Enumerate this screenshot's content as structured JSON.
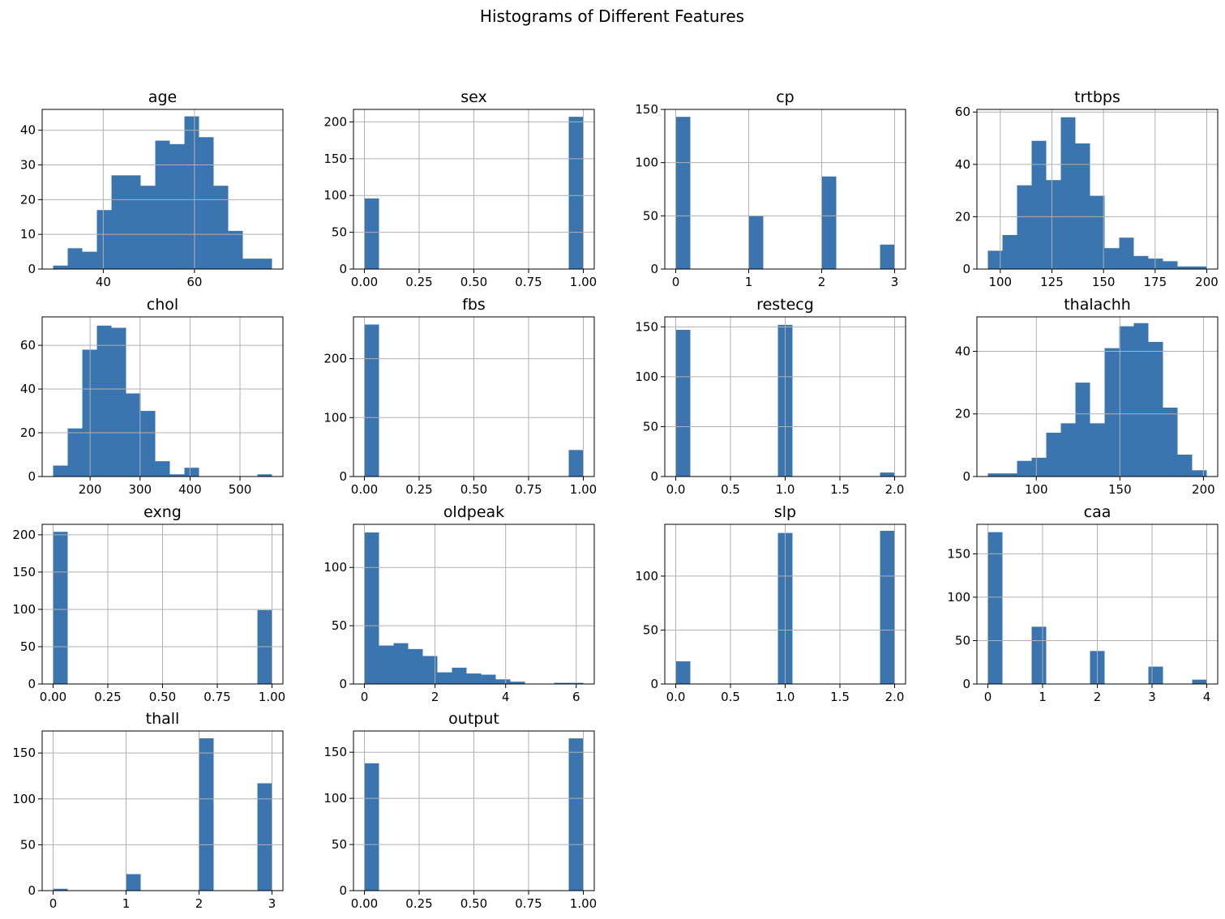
{
  "figure": {
    "title": "Histograms of Different Features",
    "bar_color": "#3b75af",
    "grid_color": "#b0b0b0"
  },
  "chart_data": [
    {
      "type": "bar",
      "title": "age",
      "xlabel": "",
      "ylabel": "",
      "grid": true,
      "bin_range": [
        29,
        77
      ],
      "xlim": [
        26.6,
        79.4
      ],
      "ylim": [
        0,
        46
      ],
      "xticks": [
        40,
        60
      ],
      "yticks": [
        0,
        10,
        20,
        30,
        40
      ],
      "tick_labels_x": [
        "40",
        "60"
      ],
      "tick_labels_y": [
        "0",
        "10",
        "20",
        "30",
        "40"
      ],
      "values": [
        1,
        6,
        5,
        17,
        27,
        27,
        24,
        37,
        36,
        44,
        38,
        24,
        11,
        3,
        3
      ]
    },
    {
      "type": "bar",
      "title": "sex",
      "xlabel": "",
      "ylabel": "",
      "grid": true,
      "bin_range": [
        0,
        1
      ],
      "xlim": [
        -0.05,
        1.05
      ],
      "ylim": [
        0,
        217
      ],
      "xticks": [
        0,
        0.25,
        0.5,
        0.75,
        1
      ],
      "yticks": [
        0,
        50,
        100,
        150,
        200
      ],
      "tick_labels_x": [
        "0.00",
        "0.25",
        "0.50",
        "0.75",
        "1.00"
      ],
      "tick_labels_y": [
        "0",
        "50",
        "100",
        "150",
        "200"
      ],
      "values": [
        96,
        0,
        0,
        0,
        0,
        0,
        0,
        0,
        0,
        0,
        0,
        0,
        0,
        0,
        207
      ]
    },
    {
      "type": "bar",
      "title": "cp",
      "xlabel": "",
      "ylabel": "",
      "grid": true,
      "bin_range": [
        0,
        3
      ],
      "xlim": [
        -0.15,
        3.15
      ],
      "ylim": [
        0,
        150
      ],
      "xticks": [
        0,
        1,
        2,
        3
      ],
      "yticks": [
        0,
        50,
        100,
        150
      ],
      "tick_labels_x": [
        "0",
        "1",
        "2",
        "3"
      ],
      "tick_labels_y": [
        "0",
        "50",
        "100",
        "150"
      ],
      "values": [
        143,
        0,
        0,
        0,
        0,
        50,
        0,
        0,
        0,
        0,
        87,
        0,
        0,
        0,
        23
      ]
    },
    {
      "type": "bar",
      "title": "trtbps",
      "xlabel": "",
      "ylabel": "",
      "grid": true,
      "bin_range": [
        94,
        200
      ],
      "xlim": [
        88.7,
        205.3
      ],
      "ylim": [
        0,
        61
      ],
      "xticks": [
        100,
        125,
        150,
        175,
        200
      ],
      "yticks": [
        0,
        20,
        40,
        60
      ],
      "tick_labels_x": [
        "100",
        "125",
        "150",
        "175",
        "200"
      ],
      "tick_labels_y": [
        "0",
        "20",
        "40",
        "60"
      ],
      "values": [
        7,
        13,
        32,
        49,
        34,
        58,
        48,
        28,
        8,
        12,
        5,
        4,
        3,
        1,
        1
      ]
    },
    {
      "type": "bar",
      "title": "chol",
      "xlabel": "",
      "ylabel": "",
      "grid": true,
      "bin_range": [
        126,
        564
      ],
      "xlim": [
        104.1,
        585.9
      ],
      "ylim": [
        0,
        73
      ],
      "xticks": [
        200,
        300,
        400,
        500
      ],
      "yticks": [
        0,
        20,
        40,
        60
      ],
      "tick_labels_x": [
        "200",
        "300",
        "400",
        "500"
      ],
      "tick_labels_y": [
        "0",
        "20",
        "40",
        "60"
      ],
      "values": [
        5,
        22,
        58,
        69,
        68,
        38,
        30,
        7,
        1,
        4,
        0,
        0,
        0,
        0,
        1
      ]
    },
    {
      "type": "bar",
      "title": "fbs",
      "xlabel": "",
      "ylabel": "",
      "grid": true,
      "bin_range": [
        0,
        1
      ],
      "xlim": [
        -0.05,
        1.05
      ],
      "ylim": [
        0,
        271
      ],
      "xticks": [
        0,
        0.25,
        0.5,
        0.75,
        1
      ],
      "yticks": [
        0,
        100,
        200
      ],
      "tick_labels_x": [
        "0.00",
        "0.25",
        "0.50",
        "0.75",
        "1.00"
      ],
      "tick_labels_y": [
        "0",
        "100",
        "200"
      ],
      "values": [
        258,
        0,
        0,
        0,
        0,
        0,
        0,
        0,
        0,
        0,
        0,
        0,
        0,
        0,
        45
      ]
    },
    {
      "type": "bar",
      "title": "restecg",
      "xlabel": "",
      "ylabel": "",
      "grid": true,
      "bin_range": [
        0,
        2
      ],
      "xlim": [
        -0.1,
        2.1
      ],
      "ylim": [
        0,
        160
      ],
      "xticks": [
        0,
        0.5,
        1,
        1.5,
        2
      ],
      "yticks": [
        0,
        50,
        100,
        150
      ],
      "tick_labels_x": [
        "0.0",
        "0.5",
        "1.0",
        "1.5",
        "2.0"
      ],
      "tick_labels_y": [
        "0",
        "50",
        "100",
        "150"
      ],
      "values": [
        147,
        0,
        0,
        0,
        0,
        0,
        0,
        152,
        0,
        0,
        0,
        0,
        0,
        0,
        4
      ]
    },
    {
      "type": "bar",
      "title": "thalachh",
      "xlabel": "",
      "ylabel": "",
      "grid": true,
      "bin_range": [
        71,
        202
      ],
      "xlim": [
        64.45,
        208.55
      ],
      "ylim": [
        0,
        51
      ],
      "xticks": [
        100,
        150,
        200
      ],
      "yticks": [
        0,
        20,
        40
      ],
      "tick_labels_x": [
        "100",
        "150",
        "200"
      ],
      "tick_labels_y": [
        "0",
        "20",
        "40"
      ],
      "values": [
        1,
        1,
        5,
        6,
        14,
        17,
        30,
        17,
        41,
        48,
        49,
        43,
        22,
        7,
        2
      ]
    },
    {
      "type": "bar",
      "title": "exng",
      "xlabel": "",
      "ylabel": "",
      "grid": true,
      "bin_range": [
        0,
        1
      ],
      "xlim": [
        -0.05,
        1.05
      ],
      "ylim": [
        0,
        214
      ],
      "xticks": [
        0,
        0.25,
        0.5,
        0.75,
        1
      ],
      "yticks": [
        0,
        50,
        100,
        150,
        200
      ],
      "tick_labels_x": [
        "0.00",
        "0.25",
        "0.50",
        "0.75",
        "1.00"
      ],
      "tick_labels_y": [
        "0",
        "50",
        "100",
        "150",
        "200"
      ],
      "values": [
        204,
        0,
        0,
        0,
        0,
        0,
        0,
        0,
        0,
        0,
        0,
        0,
        0,
        0,
        99
      ]
    },
    {
      "type": "bar",
      "title": "oldpeak",
      "xlabel": "",
      "ylabel": "",
      "grid": true,
      "bin_range": [
        0,
        6.2
      ],
      "xlim": [
        -0.31,
        6.51
      ],
      "ylim": [
        0,
        137
      ],
      "xticks": [
        0,
        2,
        4,
        6
      ],
      "yticks": [
        0,
        50,
        100
      ],
      "tick_labels_x": [
        "0",
        "2",
        "4",
        "6"
      ],
      "tick_labels_y": [
        "0",
        "50",
        "100"
      ],
      "values": [
        130,
        33,
        35,
        30,
        24,
        10,
        14,
        9,
        8,
        4,
        2,
        0,
        0,
        1,
        1
      ]
    },
    {
      "type": "bar",
      "title": "slp",
      "xlabel": "",
      "ylabel": "",
      "grid": true,
      "bin_range": [
        0,
        2
      ],
      "xlim": [
        -0.1,
        2.1
      ],
      "ylim": [
        0,
        148
      ],
      "xticks": [
        0,
        0.5,
        1,
        1.5,
        2
      ],
      "yticks": [
        0,
        50,
        100
      ],
      "tick_labels_x": [
        "0.0",
        "0.5",
        "1.0",
        "1.5",
        "2.0"
      ],
      "tick_labels_y": [
        "0",
        "50",
        "100"
      ],
      "values": [
        21,
        0,
        0,
        0,
        0,
        0,
        0,
        140,
        0,
        0,
        0,
        0,
        0,
        0,
        142
      ]
    },
    {
      "type": "bar",
      "title": "caa",
      "xlabel": "",
      "ylabel": "",
      "grid": true,
      "bin_range": [
        0,
        4
      ],
      "xlim": [
        -0.2,
        4.2
      ],
      "ylim": [
        0,
        184
      ],
      "xticks": [
        0,
        1,
        2,
        3,
        4
      ],
      "yticks": [
        0,
        50,
        100,
        150
      ],
      "tick_labels_x": [
        "0",
        "1",
        "2",
        "3",
        "4"
      ],
      "tick_labels_y": [
        "0",
        "50",
        "100",
        "150"
      ],
      "values": [
        175,
        0,
        0,
        66,
        0,
        0,
        0,
        38,
        0,
        0,
        0,
        20,
        0,
        0,
        5
      ]
    },
    {
      "type": "bar",
      "title": "thall",
      "xlabel": "",
      "ylabel": "",
      "grid": true,
      "bin_range": [
        0,
        3
      ],
      "xlim": [
        -0.15,
        3.15
      ],
      "ylim": [
        0,
        174
      ],
      "xticks": [
        0,
        1,
        2,
        3
      ],
      "yticks": [
        0,
        50,
        100,
        150
      ],
      "tick_labels_x": [
        "0",
        "1",
        "2",
        "3"
      ],
      "tick_labels_y": [
        "0",
        "50",
        "100",
        "150"
      ],
      "values": [
        2,
        0,
        0,
        0,
        0,
        18,
        0,
        0,
        0,
        0,
        166,
        0,
        0,
        0,
        117
      ]
    },
    {
      "type": "bar",
      "title": "output",
      "xlabel": "",
      "ylabel": "",
      "grid": true,
      "bin_range": [
        0,
        1
      ],
      "xlim": [
        -0.05,
        1.05
      ],
      "ylim": [
        0,
        173
      ],
      "xticks": [
        0,
        0.25,
        0.5,
        0.75,
        1
      ],
      "yticks": [
        0,
        50,
        100,
        150
      ],
      "tick_labels_x": [
        "0.00",
        "0.25",
        "0.50",
        "0.75",
        "1.00"
      ],
      "tick_labels_y": [
        "0",
        "50",
        "100",
        "150"
      ],
      "values": [
        138,
        0,
        0,
        0,
        0,
        0,
        0,
        0,
        0,
        0,
        0,
        0,
        0,
        0,
        165
      ]
    }
  ]
}
